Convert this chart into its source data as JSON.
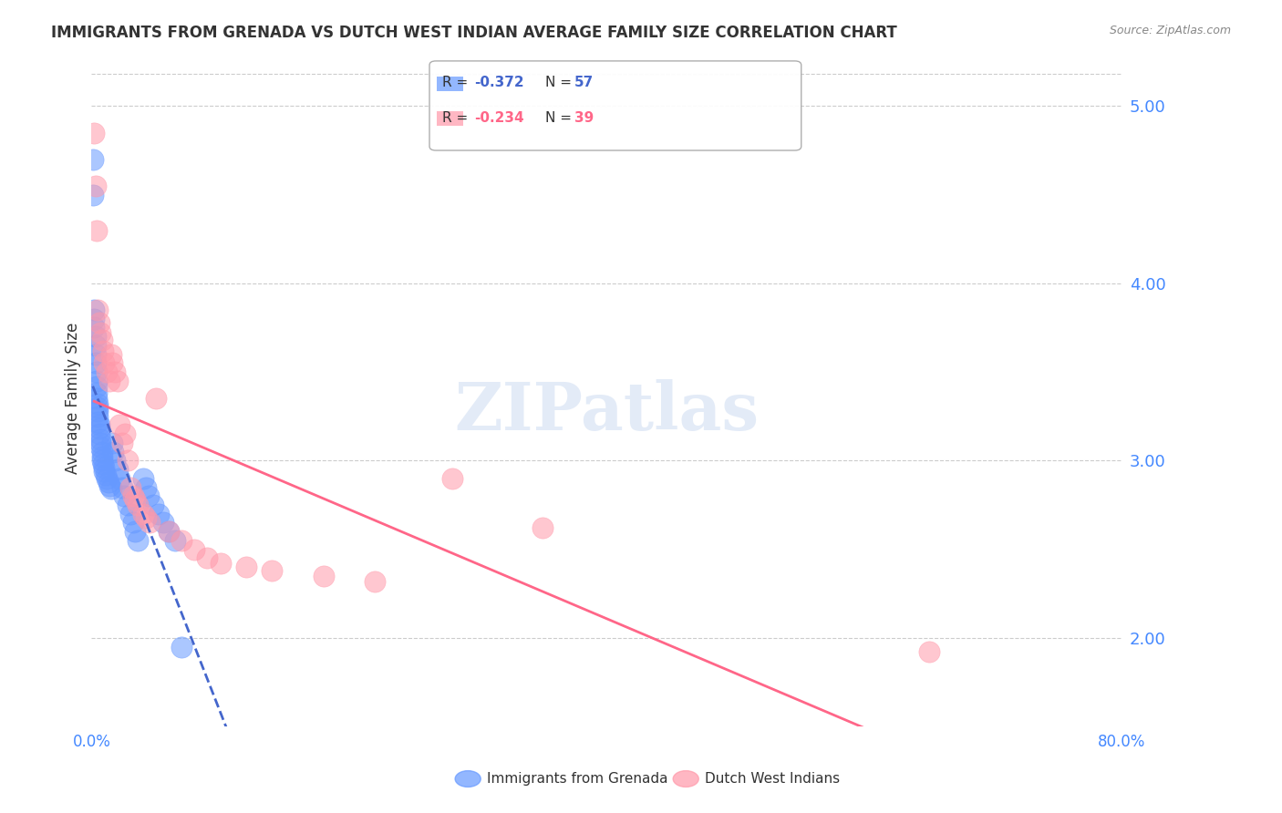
{
  "title": "IMMIGRANTS FROM GRENADA VS DUTCH WEST INDIAN AVERAGE FAMILY SIZE CORRELATION CHART",
  "source": "Source: ZipAtlas.com",
  "xlabel": "",
  "ylabel": "Average Family Size",
  "xmin": 0.0,
  "xmax": 0.8,
  "ymin": 1.5,
  "ymax": 5.2,
  "yticks": [
    2.0,
    3.0,
    4.0,
    5.0
  ],
  "xticks": [
    0.0,
    0.8
  ],
  "xticklabels": [
    "0.0%",
    "80.0%"
  ],
  "title_fontsize": 12,
  "watermark": "ZIPatlas",
  "legend_r1": "R = -0.372",
  "legend_n1": "N = 57",
  "legend_r2": "R = -0.234",
  "legend_n2": "N = 39",
  "series1_label": "Immigrants from Grenada",
  "series2_label": "Dutch West Indians",
  "series1_color": "#6699ff",
  "series2_color": "#ff99aa",
  "trendline1_color": "#4466cc",
  "trendline2_color": "#ff6688",
  "background_color": "#ffffff",
  "grid_color": "#cccccc",
  "axis_label_color": "#4488ff",
  "blue_x": [
    0.001,
    0.001,
    0.002,
    0.002,
    0.002,
    0.003,
    0.003,
    0.003,
    0.003,
    0.004,
    0.004,
    0.004,
    0.004,
    0.004,
    0.005,
    0.005,
    0.005,
    0.005,
    0.005,
    0.006,
    0.006,
    0.006,
    0.007,
    0.007,
    0.007,
    0.008,
    0.008,
    0.008,
    0.009,
    0.01,
    0.01,
    0.011,
    0.012,
    0.013,
    0.014,
    0.015,
    0.016,
    0.017,
    0.018,
    0.02,
    0.022,
    0.024,
    0.025,
    0.028,
    0.03,
    0.032,
    0.034,
    0.036,
    0.04,
    0.042,
    0.044,
    0.048,
    0.052,
    0.056,
    0.06,
    0.065,
    0.07
  ],
  "blue_y": [
    4.7,
    4.5,
    3.85,
    3.8,
    3.75,
    3.7,
    3.65,
    3.6,
    3.55,
    3.5,
    3.45,
    3.42,
    3.38,
    3.35,
    3.32,
    3.3,
    3.28,
    3.25,
    3.22,
    3.2,
    3.18,
    3.15,
    3.12,
    3.1,
    3.08,
    3.05,
    3.02,
    3.0,
    2.98,
    2.96,
    2.94,
    2.92,
    2.9,
    2.88,
    2.86,
    2.84,
    3.1,
    3.05,
    3.0,
    2.95,
    2.9,
    2.85,
    2.8,
    2.75,
    2.7,
    2.65,
    2.6,
    2.55,
    2.9,
    2.85,
    2.8,
    2.75,
    2.7,
    2.65,
    2.6,
    2.55,
    1.95
  ],
  "pink_x": [
    0.002,
    0.003,
    0.004,
    0.005,
    0.006,
    0.007,
    0.008,
    0.009,
    0.01,
    0.012,
    0.014,
    0.015,
    0.016,
    0.018,
    0.02,
    0.022,
    0.024,
    0.026,
    0.028,
    0.03,
    0.032,
    0.034,
    0.036,
    0.04,
    0.042,
    0.045,
    0.05,
    0.06,
    0.07,
    0.08,
    0.09,
    0.1,
    0.12,
    0.14,
    0.18,
    0.22,
    0.28,
    0.35,
    0.65
  ],
  "pink_y": [
    4.85,
    4.55,
    4.3,
    3.85,
    3.78,
    3.72,
    3.68,
    3.62,
    3.55,
    3.5,
    3.45,
    3.6,
    3.55,
    3.5,
    3.45,
    3.2,
    3.1,
    3.15,
    3.0,
    2.85,
    2.8,
    2.78,
    2.75,
    2.7,
    2.68,
    2.65,
    3.35,
    2.6,
    2.55,
    2.5,
    2.45,
    2.42,
    2.4,
    2.38,
    2.35,
    2.32,
    2.9,
    2.62,
    1.92
  ]
}
